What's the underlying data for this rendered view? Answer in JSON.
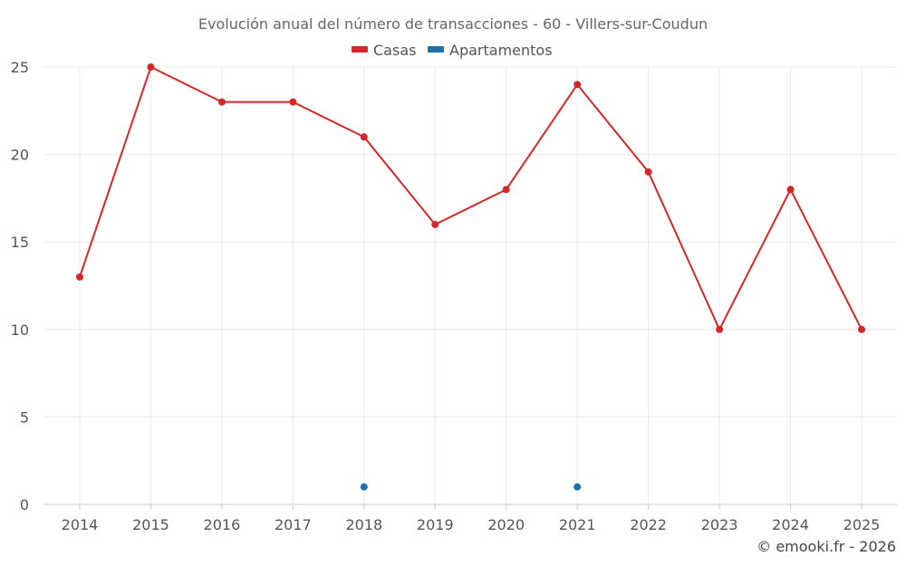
{
  "chart_data": {
    "type": "line",
    "title": "Evolución anual del número de transacciones - 60 - Villers-sur-Coudun",
    "categories": [
      "2014",
      "2015",
      "2016",
      "2017",
      "2018",
      "2019",
      "2020",
      "2021",
      "2022",
      "2023",
      "2024",
      "2025"
    ],
    "series": [
      {
        "name": "Casas",
        "color": "#d62728",
        "values": [
          13,
          25,
          23,
          23,
          21,
          16,
          18,
          24,
          19,
          10,
          18,
          10
        ]
      },
      {
        "name": "Apartamentos",
        "color": "#1f6fa8",
        "values": [
          null,
          null,
          null,
          null,
          1,
          null,
          null,
          1,
          null,
          null,
          null,
          null
        ]
      }
    ],
    "y_ticks": [
      "0",
      "5",
      "10",
      "15",
      "20",
      "25"
    ],
    "ylim": [
      0,
      25
    ],
    "xlabel": "",
    "ylabel": "",
    "grid": true,
    "legend_position": "top-center"
  },
  "credit": "© emooki.fr - 2026"
}
